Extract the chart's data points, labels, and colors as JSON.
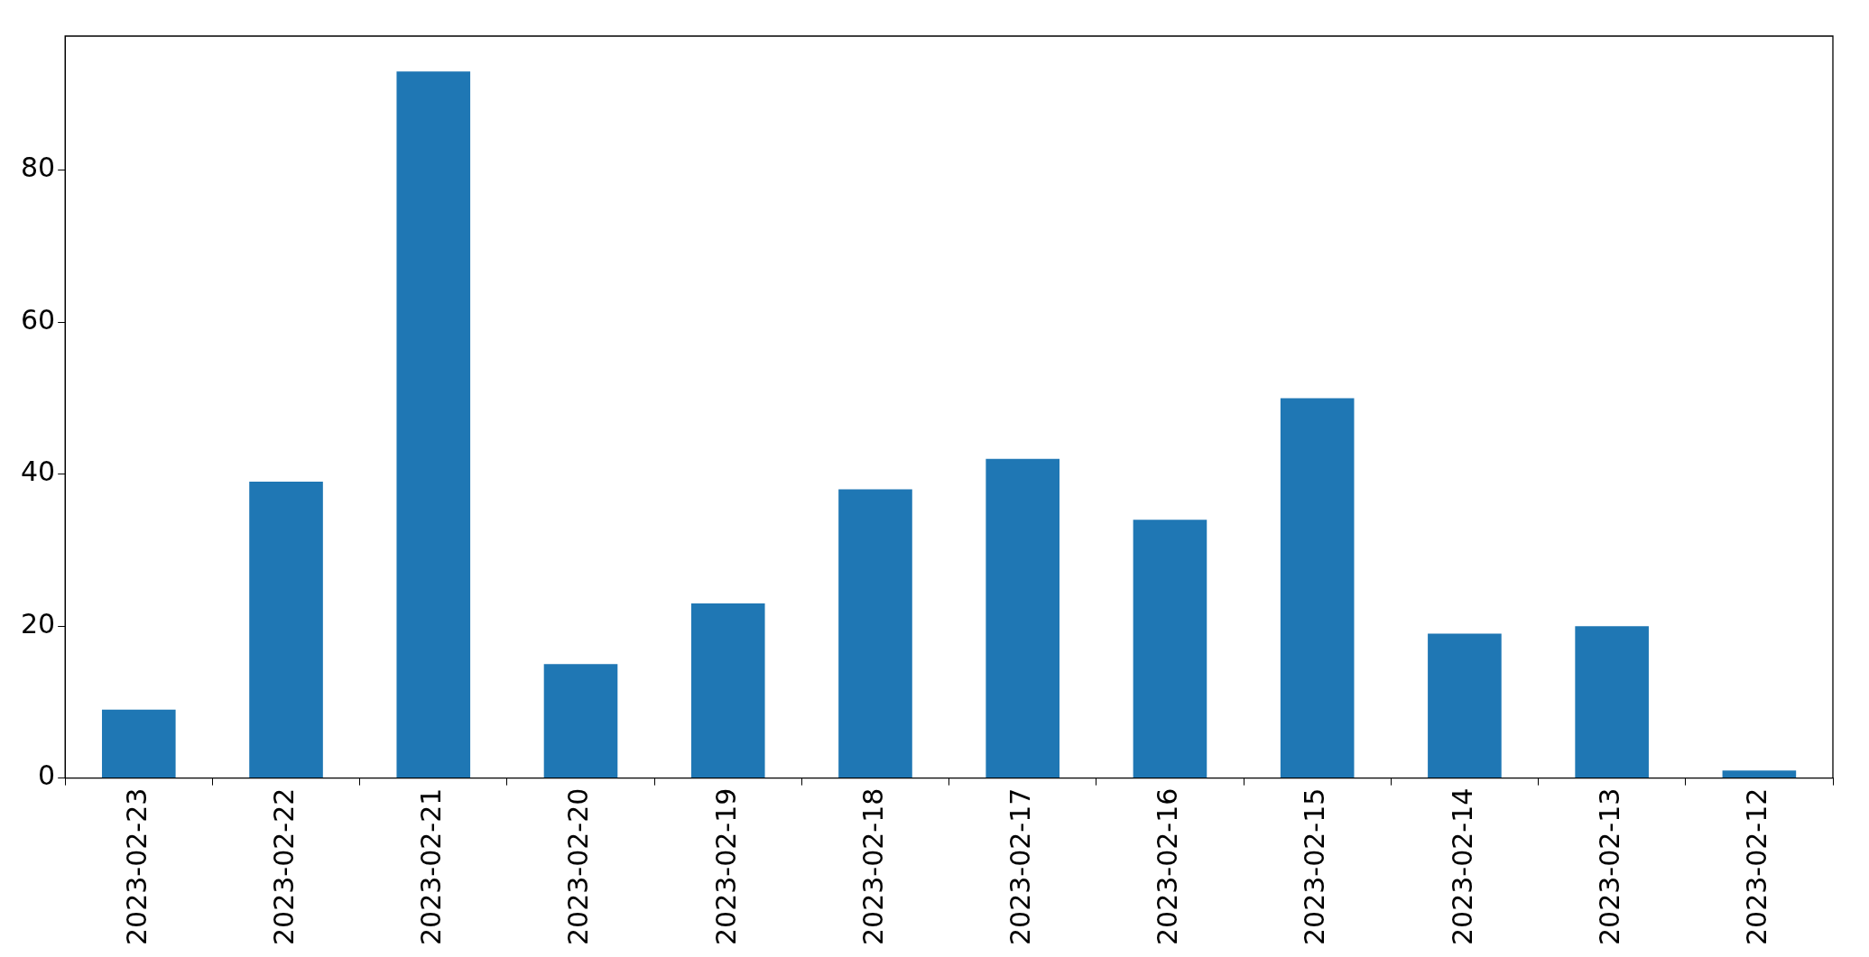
{
  "chart_data": {
    "type": "bar",
    "categories": [
      "2023-02-23",
      "2023-02-22",
      "2023-02-21",
      "2023-02-20",
      "2023-02-19",
      "2023-02-18",
      "2023-02-17",
      "2023-02-16",
      "2023-02-15",
      "2023-02-14",
      "2023-02-13",
      "2023-02-12"
    ],
    "values": [
      9,
      39,
      93,
      15,
      23,
      38,
      42,
      34,
      50,
      19,
      20,
      1
    ],
    "color": "#1f77b4",
    "ylim": [
      0,
      97.65
    ],
    "yticks": [
      0,
      20,
      40,
      60,
      80
    ],
    "grid": false
  }
}
